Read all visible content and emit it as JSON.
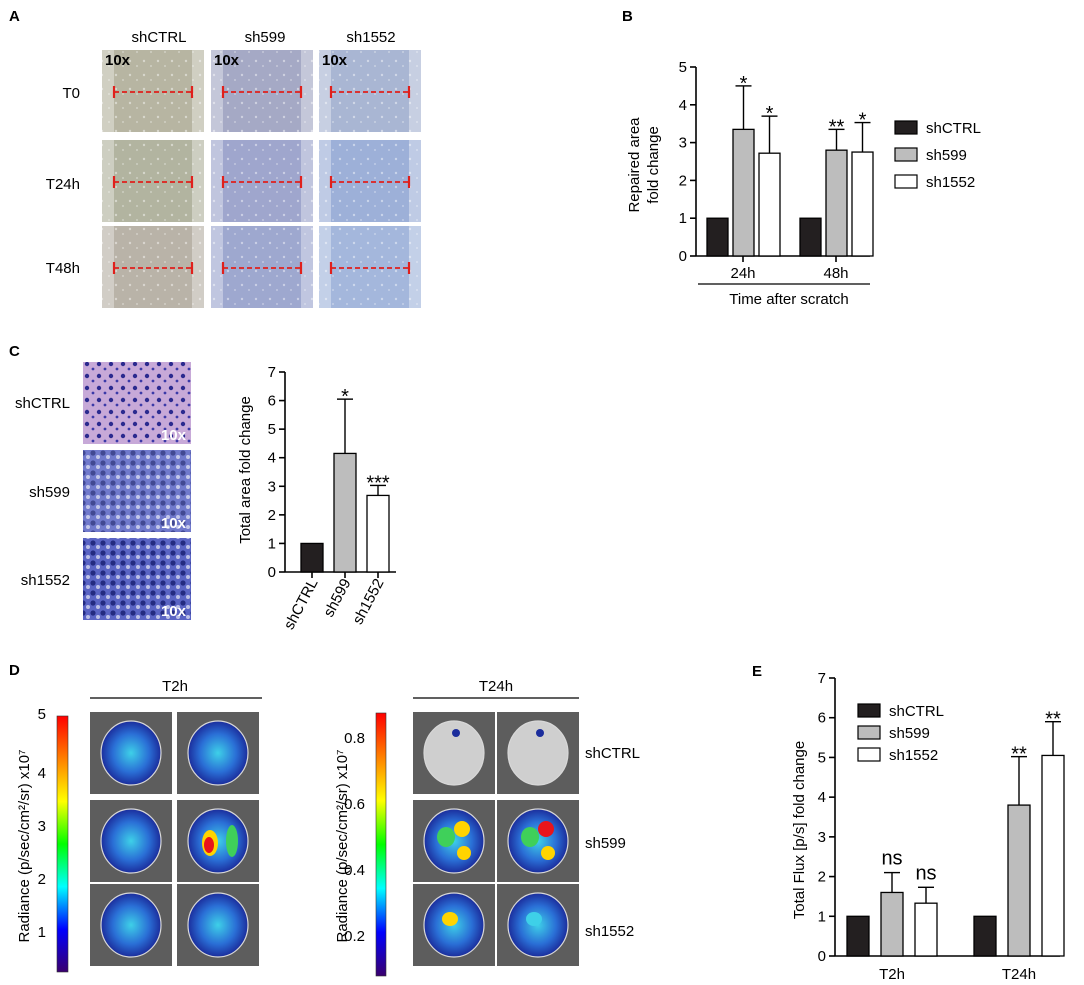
{
  "panels": {
    "A": "A",
    "B": "B",
    "C": "C",
    "D": "D",
    "E": "E"
  },
  "scratch": {
    "columns": [
      "shCTRL",
      "sh599",
      "sh1552"
    ],
    "rows": [
      "T0",
      "T24h",
      "T48h"
    ],
    "magnification": "10x"
  },
  "transwell": {
    "rows": [
      "shCTRL",
      "sh599",
      "sh1552"
    ],
    "magnification": "10x"
  },
  "imaging": {
    "left_title": "T2h",
    "right_title": "T24h",
    "row_labels": [
      "shCTRL",
      "sh599",
      "sh1552"
    ],
    "colorbar_label": "Radiance (p/sec/cm²/sr) x10⁷",
    "left_scale_ticks": [
      "5",
      "4",
      "3",
      "2",
      "1"
    ],
    "right_scale_ticks": [
      "0.8",
      "0.6",
      "0.4",
      "0.2"
    ],
    "scale_colors": [
      "#ff0000",
      "#ff8000",
      "#ffff00",
      "#00ff00",
      "#00ffff",
      "#0000ff",
      "#3a006e"
    ]
  },
  "colors": {
    "shCTRL": "#231f20",
    "sh599": "#bdbdbd",
    "sh1552": "#ffffff"
  },
  "chart_data": [
    {
      "id": "B",
      "type": "bar",
      "categories": [
        "24h",
        "48h"
      ],
      "series": [
        {
          "name": "shCTRL",
          "values": [
            1,
            1
          ],
          "errors": [
            0,
            0
          ],
          "sig": [
            "",
            ""
          ]
        },
        {
          "name": "sh599",
          "values": [
            3.35,
            2.8
          ],
          "errors": [
            1.15,
            0.55
          ],
          "sig": [
            "*",
            "**"
          ]
        },
        {
          "name": "sh1552",
          "values": [
            2.72,
            2.75
          ],
          "errors": [
            0.98,
            0.78
          ],
          "sig": [
            "*",
            "*"
          ]
        }
      ],
      "ylabel": [
        "Repaired area",
        "fold change"
      ],
      "xlabel": "Time after scratch",
      "ylim": [
        0,
        5
      ],
      "yticks": [
        0,
        1,
        2,
        3,
        4,
        5
      ],
      "legend": "right"
    },
    {
      "id": "C",
      "type": "bar",
      "categories": [
        "shCTRL",
        "sh599",
        "sh1552"
      ],
      "values": [
        1,
        4.15,
        2.68
      ],
      "errors": [
        0,
        1.9,
        0.35
      ],
      "sig": [
        "",
        "*",
        "***"
      ],
      "ylabel": "Total area fold change",
      "ylim": [
        0,
        7
      ],
      "yticks": [
        0,
        1,
        2,
        3,
        4,
        5,
        6,
        7
      ]
    },
    {
      "id": "E",
      "type": "bar",
      "categories": [
        "T2h",
        "T24h"
      ],
      "series": [
        {
          "name": "shCTRL",
          "values": [
            1,
            1
          ],
          "errors": [
            0,
            0
          ],
          "sig": [
            "",
            ""
          ]
        },
        {
          "name": "sh599",
          "values": [
            1.6,
            3.8
          ],
          "errors": [
            0.5,
            1.22
          ],
          "sig": [
            "ns",
            "**"
          ]
        },
        {
          "name": "sh1552",
          "values": [
            1.33,
            5.05
          ],
          "errors": [
            0.4,
            0.85
          ],
          "sig": [
            "ns",
            "**"
          ]
        }
      ],
      "ylabel": "Total Flux [p/s] fold change",
      "ylim": [
        0,
        7
      ],
      "yticks": [
        0,
        1,
        2,
        3,
        4,
        5,
        6,
        7
      ],
      "legend": "top-left"
    }
  ]
}
